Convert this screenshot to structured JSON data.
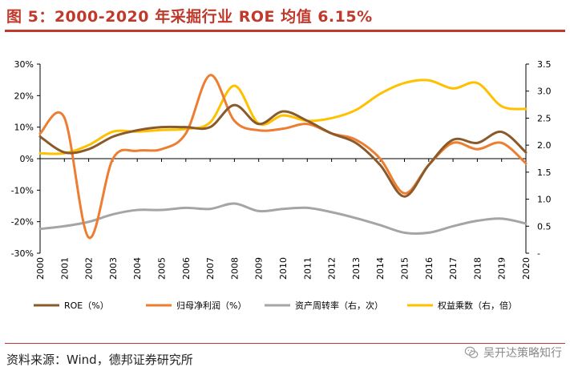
{
  "header": {
    "title": "图 5：2000-2020 年采掘行业 ROE 均值 6.15%"
  },
  "footer": {
    "source": "资料来源：Wind，德邦证券研究所",
    "watermark": "吴开达策略知行"
  },
  "colors": {
    "accent": "#c0392b",
    "roe": "#8B5A2B",
    "profit": "#ED7D31",
    "turnover": "#A5A5A5",
    "multiplier": "#FFC000"
  },
  "chart_data": {
    "type": "line",
    "categories": [
      "2000",
      "2001",
      "2002",
      "2003",
      "2004",
      "2005",
      "2006",
      "2007",
      "2008",
      "2009",
      "2010",
      "2011",
      "2012",
      "2013",
      "2014",
      "2015",
      "2016",
      "2017",
      "2018",
      "2019",
      "2020"
    ],
    "y_left": {
      "min": -0.3,
      "max": 0.3,
      "ticks": [
        -0.3,
        -0.2,
        -0.1,
        0,
        0.1,
        0.2,
        0.3
      ],
      "tick_labels": [
        "-30%",
        "-20%",
        "-10%",
        "0%",
        "10%",
        "20%",
        "30%"
      ]
    },
    "y_right": {
      "min": 0,
      "max": 3.5,
      "ticks": [
        0,
        0.5,
        1.0,
        1.5,
        2.0,
        2.5,
        3.0,
        3.5
      ],
      "tick_labels": [
        "-",
        "0.5",
        "1.0",
        "1.5",
        "2.0",
        "2.5",
        "3.0",
        "3.5"
      ]
    },
    "series": [
      {
        "name": "ROE（%）",
        "axis": "left",
        "color": "#8B5A2B",
        "values": [
          0.07,
          0.02,
          0.03,
          0.07,
          0.09,
          0.1,
          0.1,
          0.1,
          0.17,
          0.11,
          0.15,
          0.12,
          0.08,
          0.05,
          -0.02,
          -0.12,
          -0.02,
          0.06,
          0.05,
          0.085,
          0.02
        ]
      },
      {
        "name": "归母净利润（%）",
        "axis": "left",
        "color": "#ED7D31",
        "values": [
          0.08,
          0.13,
          -0.25,
          0.0,
          0.025,
          0.03,
          0.08,
          0.265,
          0.12,
          0.09,
          0.095,
          0.11,
          0.08,
          0.06,
          0.0,
          -0.11,
          -0.02,
          0.05,
          0.03,
          0.05,
          -0.015
        ]
      },
      {
        "name": "资产周转率（右，次）",
        "axis": "right",
        "color": "#A5A5A5",
        "values": [
          0.45,
          0.5,
          0.58,
          0.72,
          0.8,
          0.8,
          0.84,
          0.82,
          0.92,
          0.78,
          0.82,
          0.84,
          0.76,
          0.65,
          0.52,
          0.38,
          0.38,
          0.5,
          0.6,
          0.64,
          0.55
        ]
      },
      {
        "name": "权益乘数（右，倍）",
        "axis": "right",
        "color": "#FFC000",
        "values": [
          1.85,
          1.85,
          2.0,
          2.25,
          2.25,
          2.28,
          2.3,
          2.42,
          3.1,
          2.4,
          2.55,
          2.45,
          2.5,
          2.65,
          2.95,
          3.15,
          3.2,
          3.05,
          3.15,
          2.72,
          2.67
        ]
      }
    ]
  }
}
